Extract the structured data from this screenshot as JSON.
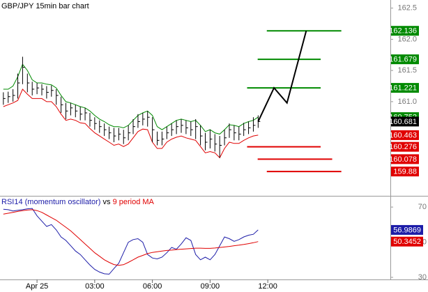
{
  "chart_data": [
    {
      "type": "ohlc",
      "title": "GBP/JPY 15min bar chart",
      "ylim": [
        159.49,
        162.63
      ],
      "yticks": [
        162.5,
        {
          "value": 162,
          "label": "162.0"
        },
        161.5,
        {
          "value": 161,
          "label": "161.0"
        }
      ],
      "xlim": [
        -0.7,
        80.5
      ],
      "xticks": [
        {
          "value": 7,
          "label": "Apr 25"
        },
        {
          "value": 19,
          "label": "03:00"
        },
        {
          "value": 31,
          "label": "06:00"
        },
        {
          "value": 43,
          "label": "09:00"
        },
        {
          "value": 55,
          "label": "12:00"
        }
      ],
      "bar_color": "#000000",
      "bars": {
        "high": [
          161.15,
          161.16,
          161.2,
          161.45,
          161.72,
          161.45,
          161.32,
          161.3,
          161.28,
          161.25,
          161.26,
          161.2,
          161.08,
          160.98,
          160.98,
          160.95,
          160.92,
          160.9,
          160.82,
          160.75,
          160.7,
          160.65,
          160.6,
          160.58,
          160.58,
          160.55,
          160.62,
          160.72,
          160.8,
          160.82,
          160.85,
          160.75,
          160.52,
          160.52,
          160.6,
          160.65,
          160.7,
          160.72,
          160.7,
          160.68,
          160.72,
          160.62,
          160.5,
          160.55,
          160.48,
          160.45,
          160.55,
          160.65,
          160.62,
          160.6,
          160.66,
          160.68,
          160.75,
          160.78
        ],
        "low": [
          160.95,
          160.98,
          161.0,
          161.05,
          161.28,
          161.15,
          161.1,
          161.12,
          161.1,
          161.05,
          161.08,
          160.95,
          160.82,
          160.72,
          160.78,
          160.75,
          160.7,
          160.7,
          160.6,
          160.55,
          160.5,
          160.45,
          160.4,
          160.35,
          160.38,
          160.32,
          160.38,
          160.48,
          160.58,
          160.62,
          160.6,
          160.35,
          160.3,
          160.3,
          160.4,
          160.45,
          160.48,
          160.5,
          160.48,
          160.45,
          160.4,
          160.3,
          160.22,
          160.25,
          160.2,
          160.1,
          160.3,
          160.42,
          160.38,
          160.38,
          160.45,
          160.48,
          160.52,
          160.58
        ],
        "close": [
          161.05,
          161.08,
          161.1,
          161.3,
          161.55,
          161.3,
          161.2,
          161.22,
          161.2,
          161.15,
          161.18,
          161.1,
          160.95,
          160.85,
          160.9,
          160.85,
          160.8,
          160.82,
          160.7,
          160.65,
          160.6,
          160.55,
          160.5,
          160.45,
          160.48,
          160.42,
          160.5,
          160.6,
          160.68,
          160.72,
          160.75,
          160.55,
          160.38,
          160.4,
          160.5,
          160.55,
          160.6,
          160.62,
          160.58,
          160.55,
          160.6,
          160.45,
          160.35,
          160.4,
          160.32,
          160.3,
          160.42,
          160.55,
          160.5,
          160.48,
          160.55,
          160.58,
          160.62,
          160.681
        ]
      },
      "envelope": {
        "upper": {
          "color": "#008a00",
          "values": [
            161.2,
            161.2,
            161.25,
            161.4,
            161.6,
            161.5,
            161.35,
            161.3,
            161.3,
            161.28,
            161.27,
            161.22,
            161.1,
            161.0,
            160.98,
            160.95,
            160.92,
            160.9,
            160.85,
            160.78,
            160.72,
            160.68,
            160.63,
            160.6,
            160.6,
            160.58,
            160.62,
            160.7,
            160.78,
            160.82,
            160.85,
            160.78,
            160.6,
            160.55,
            160.6,
            160.65,
            160.7,
            160.72,
            160.7,
            160.68,
            160.7,
            160.62,
            160.52,
            160.55,
            160.5,
            160.48,
            160.55,
            160.63,
            160.62,
            160.6,
            160.65,
            160.68,
            160.7,
            160.752
          ]
        },
        "lower": {
          "color": "#e00000",
          "values": [
            160.92,
            160.95,
            160.98,
            161.02,
            161.2,
            161.12,
            161.05,
            161.05,
            161.05,
            161.0,
            161.0,
            160.92,
            160.8,
            160.7,
            160.72,
            160.7,
            160.66,
            160.65,
            160.57,
            160.5,
            160.45,
            160.4,
            160.35,
            160.3,
            160.32,
            160.28,
            160.32,
            160.42,
            160.52,
            160.56,
            160.55,
            160.35,
            160.25,
            160.25,
            160.35,
            160.4,
            160.43,
            160.45,
            160.42,
            160.4,
            160.38,
            160.28,
            160.18,
            160.2,
            160.18,
            160.1,
            160.25,
            160.35,
            160.33,
            160.33,
            160.38,
            160.42,
            160.45,
            160.463
          ]
        }
      },
      "forecast": {
        "color": "#000000",
        "x": [
          53,
          56.3,
          59,
          63
        ],
        "values": [
          160.681,
          161.221,
          160.98,
          162.136
        ]
      },
      "levels": [
        {
          "value": 162.136,
          "color": "#008a00",
          "x": [
            54.8,
            70.3
          ]
        },
        {
          "value": 161.679,
          "color": "#008a00",
          "x": [
            52.9,
            66
          ]
        },
        {
          "value": 161.221,
          "color": "#008a00",
          "x": [
            50.7,
            66
          ]
        },
        {
          "value": 160.276,
          "color": "#e00000",
          "x": [
            50.7,
            66
          ]
        },
        {
          "value": 160.078,
          "color": "#e00000",
          "x": [
            52.9,
            68.4
          ]
        },
        {
          "value": 159.88,
          "color": "#e00000",
          "x": [
            54.8,
            70.3
          ]
        }
      ]
    },
    {
      "type": "line",
      "legend_joiner": "vs",
      "ylim": [
        28.8,
        76
      ],
      "yticks": [
        70,
        50,
        30
      ],
      "series": [
        {
          "name": "RSI14 (momentum oscillator)",
          "color": "#1c1ca8",
          "values": [
            68.8,
            68.5,
            67.8,
            68.2,
            68.5,
            69,
            69.2,
            65,
            62,
            59,
            60,
            57,
            53,
            51,
            48,
            45,
            43,
            40,
            37,
            34.5,
            33,
            32,
            31.8,
            35,
            38,
            44,
            50,
            51.5,
            52,
            50,
            43,
            41,
            40.5,
            41.5,
            44,
            47,
            46,
            49,
            52.5,
            51,
            43,
            40,
            41.5,
            40,
            43,
            48,
            53,
            52,
            50.5,
            51.5,
            53,
            54,
            54.5,
            56.9869
          ]
        },
        {
          "name": "9 period MA",
          "color": "#e00000",
          "values": [
            66,
            66.5,
            67,
            67.5,
            68,
            68.3,
            68.5,
            68,
            67,
            65.5,
            64,
            62.5,
            60.5,
            58.5,
            56.5,
            54,
            51.5,
            49,
            46.5,
            44,
            42,
            40,
            38.5,
            37.3,
            36.8,
            37.2,
            38.5,
            40,
            41.5,
            42.5,
            43.5,
            44.2,
            44.6,
            45,
            45.3,
            45.5,
            45.8,
            46,
            46.2,
            46.4,
            46.6,
            46.6,
            46.5,
            46.5,
            46.7,
            47,
            47.3,
            47.6,
            48,
            48.3,
            48.7,
            49.2,
            49.7,
            50.3452
          ]
        }
      ]
    }
  ]
}
